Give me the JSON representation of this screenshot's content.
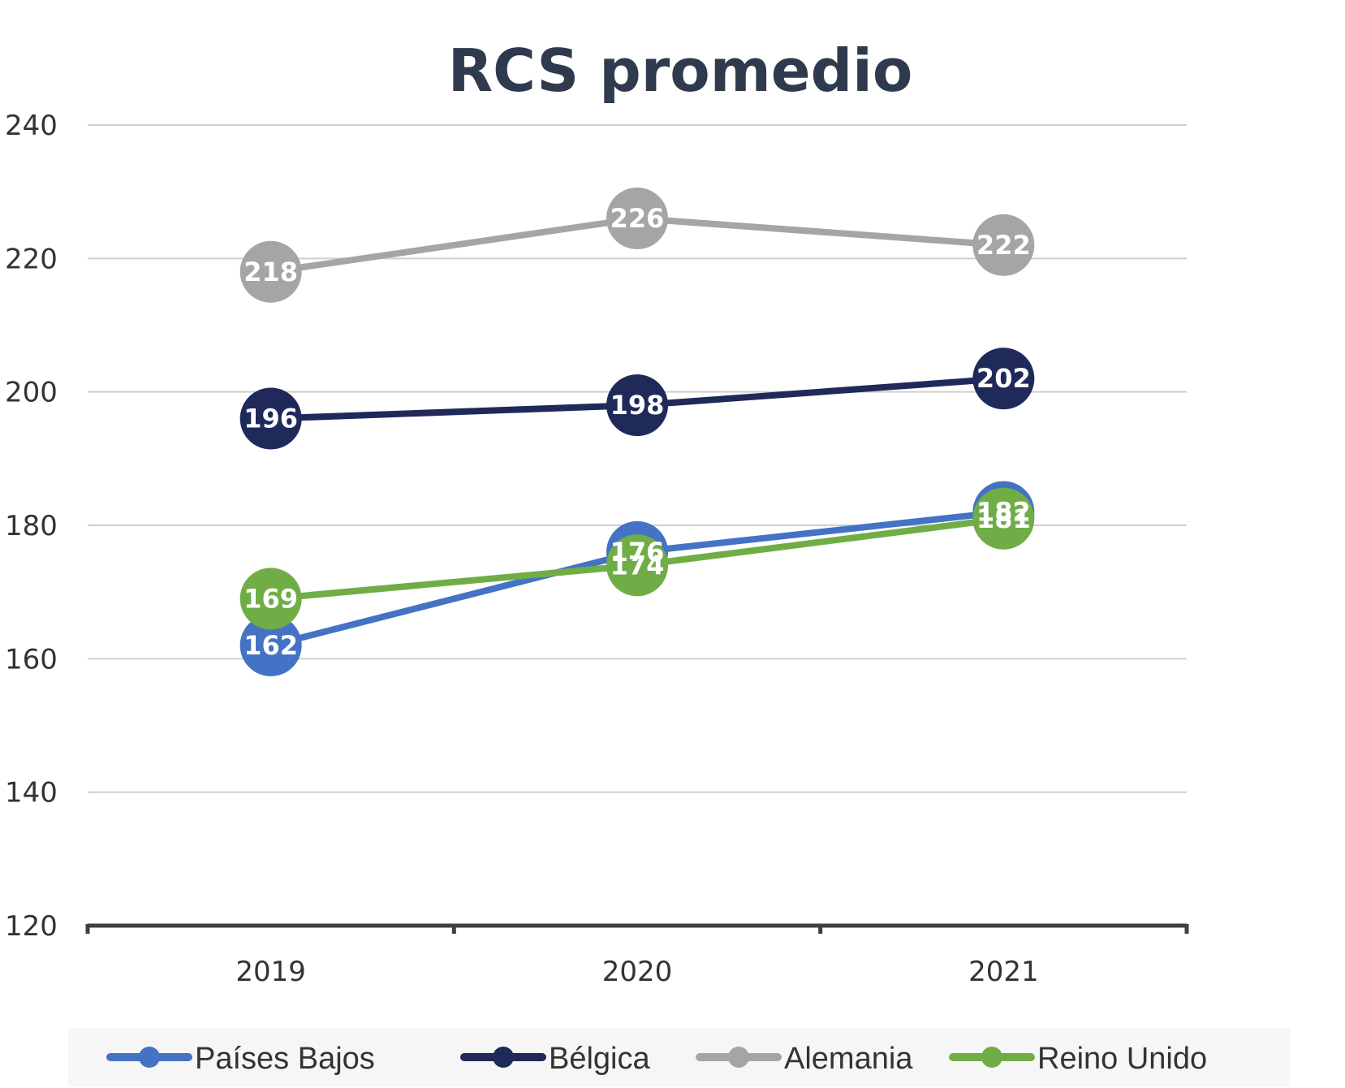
{
  "chart_data": {
    "type": "line",
    "title": "RCS promedio",
    "xlabel": "",
    "ylabel": "",
    "categories": [
      "2019",
      "2020",
      "2021"
    ],
    "ylim": [
      120,
      240
    ],
    "yticks": [
      120,
      140,
      160,
      180,
      200,
      220,
      240
    ],
    "grid": true,
    "legend_position": "bottom",
    "series": [
      {
        "name": "Países Bajos",
        "color": "#4472c4",
        "values": [
          162,
          176,
          182
        ]
      },
      {
        "name": "Bélgica",
        "color": "#1f2a5a",
        "values": [
          196,
          198,
          202
        ]
      },
      {
        "name": "Alemania",
        "color": "#a5a5a5",
        "values": [
          218,
          226,
          222
        ]
      },
      {
        "name": "Reino Unido",
        "color": "#70ad47",
        "values": [
          169,
          174,
          181
        ]
      }
    ]
  }
}
